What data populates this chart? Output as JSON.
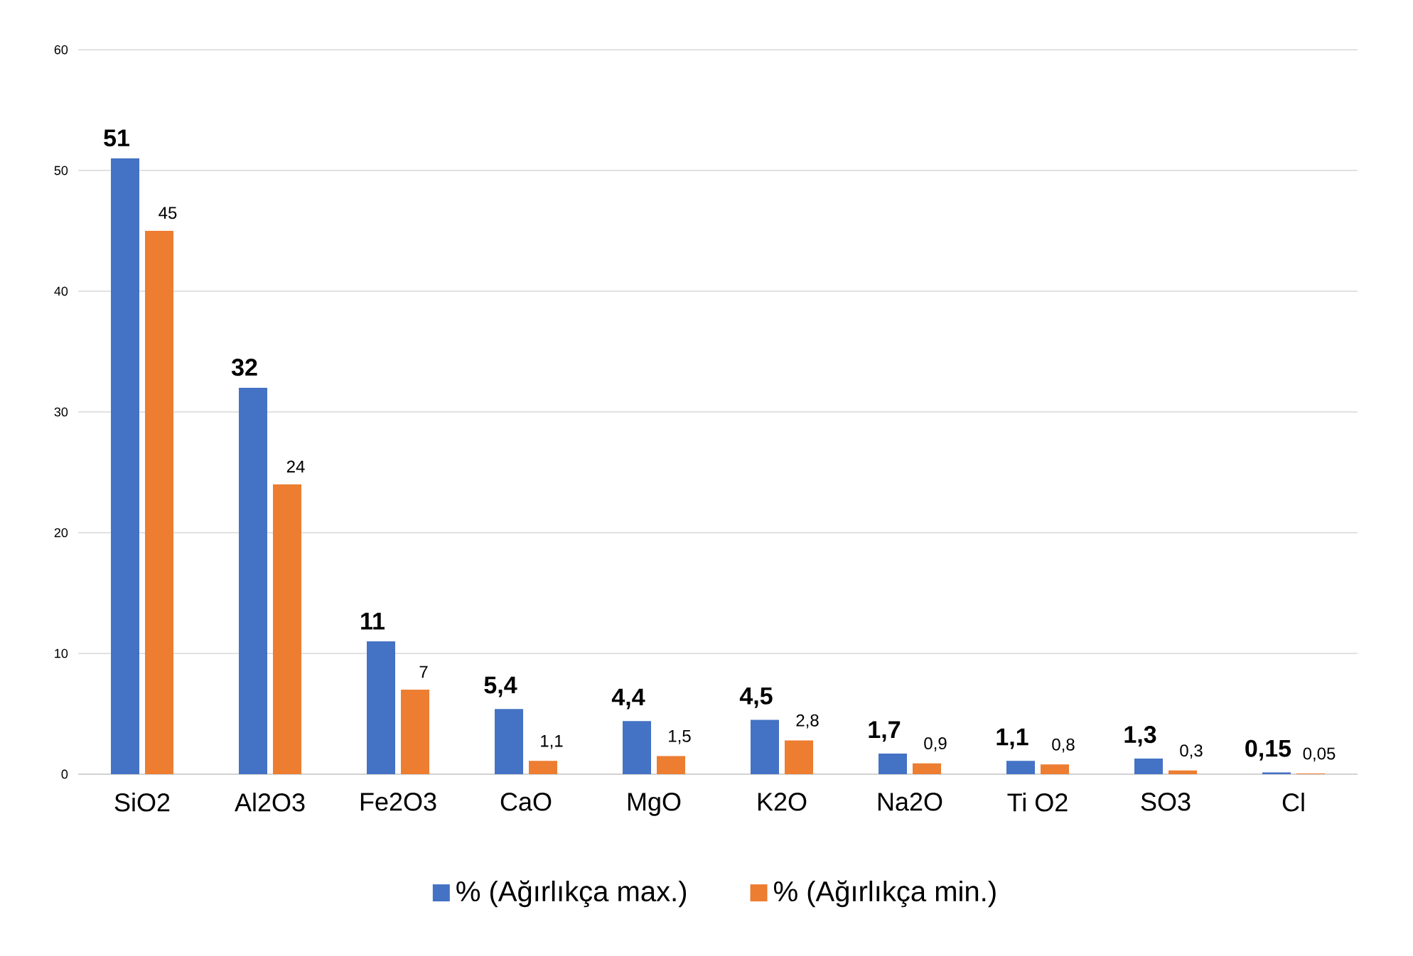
{
  "chart_data": {
    "type": "bar",
    "categories": [
      "SiO2",
      "Al2O3",
      "Fe2O3",
      "CaO",
      "MgO",
      "K2O",
      "Na2O",
      "Ti O2",
      "SO3",
      "Cl"
    ],
    "series": [
      {
        "name": "% (Ağırlıkça max.)",
        "color": "#4472c4",
        "values": [
          51,
          32,
          11,
          5.4,
          4.4,
          4.5,
          1.7,
          1.1,
          1.3,
          0.15
        ],
        "value_labels": [
          "51",
          "32",
          "11",
          "5,4",
          "4,4",
          "4,5",
          "1,7",
          "1,1",
          "1,3",
          "0,15"
        ]
      },
      {
        "name": "% (Ağırlıkça min.)",
        "color": "#ed7d31",
        "values": [
          45,
          24,
          7,
          1.1,
          1.5,
          2.8,
          0.9,
          0.8,
          0.3,
          0.05
        ],
        "value_labels": [
          "45",
          "24",
          "7",
          "1,1",
          "1,5",
          "2,8",
          "0,9",
          "0,8",
          "0,3",
          "0,05"
        ]
      }
    ],
    "ylim": [
      0,
      60
    ],
    "yticks": [
      0,
      10,
      20,
      30,
      40,
      50,
      60
    ],
    "grid": "y",
    "legend": "bottom"
  }
}
